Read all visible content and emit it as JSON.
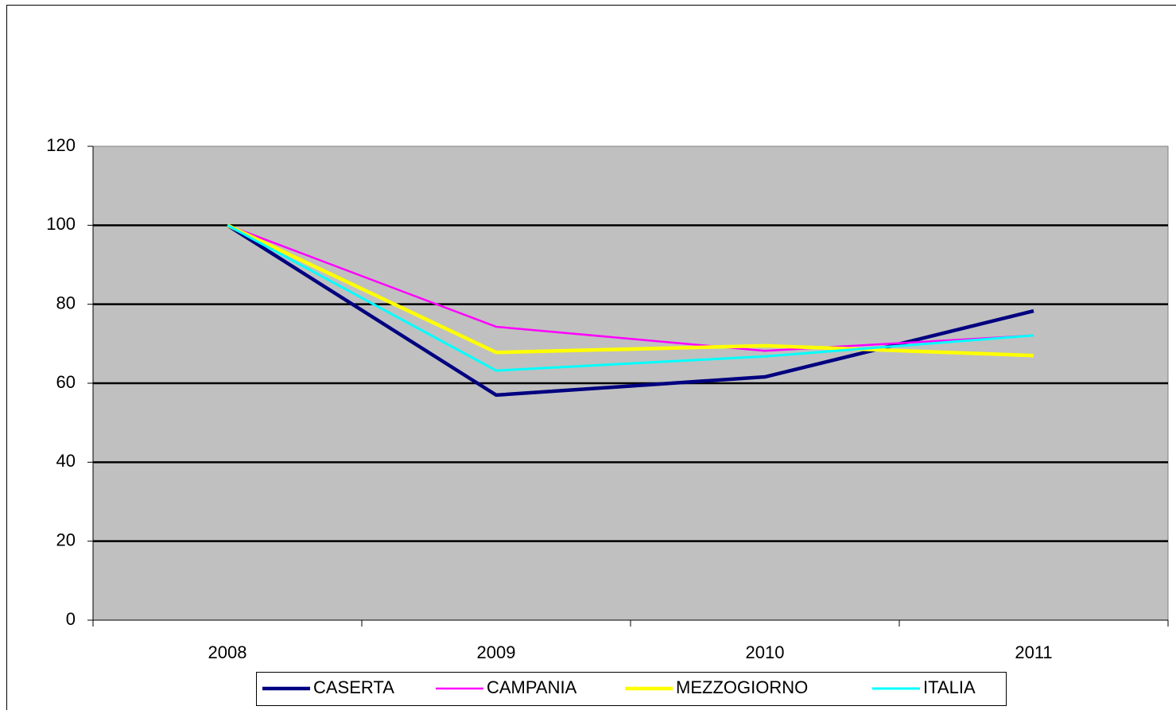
{
  "chart_data": {
    "type": "line",
    "categories": [
      "2008",
      "2009",
      "2010",
      "2011"
    ],
    "series": [
      {
        "name": "CASERTA",
        "color": "#000080",
        "values": [
          100,
          57,
          61.6,
          78.3
        ]
      },
      {
        "name": "CAMPANIA",
        "color": "#ff00ff",
        "values": [
          100,
          74.3,
          68.2,
          72.1
        ]
      },
      {
        "name": "MEZZOGIORNO",
        "color": "#ffff00",
        "values": [
          100,
          67.8,
          69.5,
          67
        ]
      },
      {
        "name": "ITALIA",
        "color": "#00ffff",
        "values": [
          100,
          63.2,
          66.8,
          72.1
        ]
      }
    ],
    "ylim": [
      0,
      120
    ],
    "yticks": [
      0,
      20,
      40,
      60,
      80,
      100,
      120
    ],
    "grid": true,
    "plot_background": "#c0c0c0",
    "legend": "bottom"
  }
}
